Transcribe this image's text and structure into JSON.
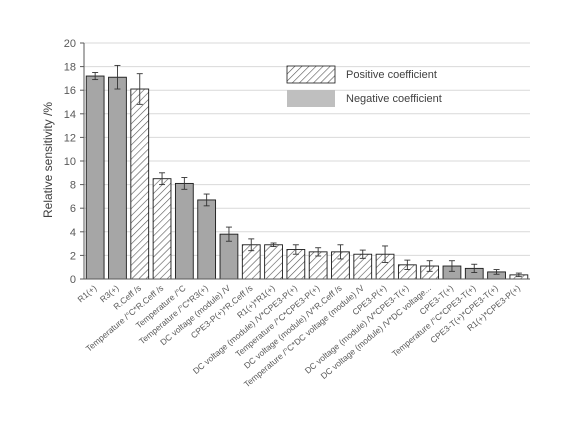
{
  "chart_data": {
    "type": "bar",
    "ylabel": "Relative sensitivity /%",
    "ylim": [
      0,
      20
    ],
    "yticks": [
      0,
      2,
      4,
      6,
      8,
      10,
      12,
      14,
      16,
      18,
      20
    ],
    "grid": true,
    "legend_position": "top-right",
    "legend": [
      {
        "label": "Positive coefficient",
        "pattern": "hatched"
      },
      {
        "label": "Negative coefficient",
        "pattern": "solid-gray"
      }
    ],
    "colors": {
      "negative": "#a6a6a6",
      "positive_fill": "#ffffff",
      "hatch": "#555555",
      "edge": "#1a1a1a",
      "grid": "#d9d9d9"
    },
    "categories": [
      "R1(+)",
      "R3(+)",
      "R.Ceff /s",
      "Temperature /°C*R.Ceff /s",
      "Temperature /°C",
      "Temperature /°C*R3(+)",
      "DC voltage (module) /V",
      "CPE3-P(+)*R.Ceff /s",
      "R1(+)*R1(+)",
      "DC voltage (module) /V*CPE3-P(+)",
      "Temperature /°C*CPE3-P(+)",
      "DC voltage (module) /V*R.Ceff /s",
      "Temperature /°C*DC voltage (module) /V",
      "CPE3-P(+)",
      "DC voltage (module) /V*CPE3-T(+)",
      "DC voltage (module) /V*DC voltage...",
      "CPE3-T(+)",
      "Temperature /°C*CPE3-T(+)",
      "CPE3-T(+)*CPE3-T(+)",
      "R1(+)*CPE3-P(+)"
    ],
    "values": [
      17.2,
      17.1,
      16.1,
      8.5,
      8.1,
      6.7,
      3.8,
      2.9,
      2.9,
      2.5,
      2.3,
      2.3,
      2.1,
      2.1,
      1.2,
      1.1,
      1.1,
      0.9,
      0.6,
      0.35
    ],
    "errors": [
      0.3,
      1.0,
      1.3,
      0.5,
      0.5,
      0.5,
      0.6,
      0.5,
      0.15,
      0.4,
      0.35,
      0.6,
      0.35,
      0.7,
      0.4,
      0.45,
      0.45,
      0.35,
      0.2,
      0.15
    ],
    "sign": [
      "negative",
      "negative",
      "positive",
      "positive",
      "negative",
      "negative",
      "negative",
      "positive",
      "positive",
      "positive",
      "positive",
      "positive",
      "positive",
      "positive",
      "positive",
      "positive",
      "negative",
      "negative",
      "negative",
      "positive"
    ]
  }
}
